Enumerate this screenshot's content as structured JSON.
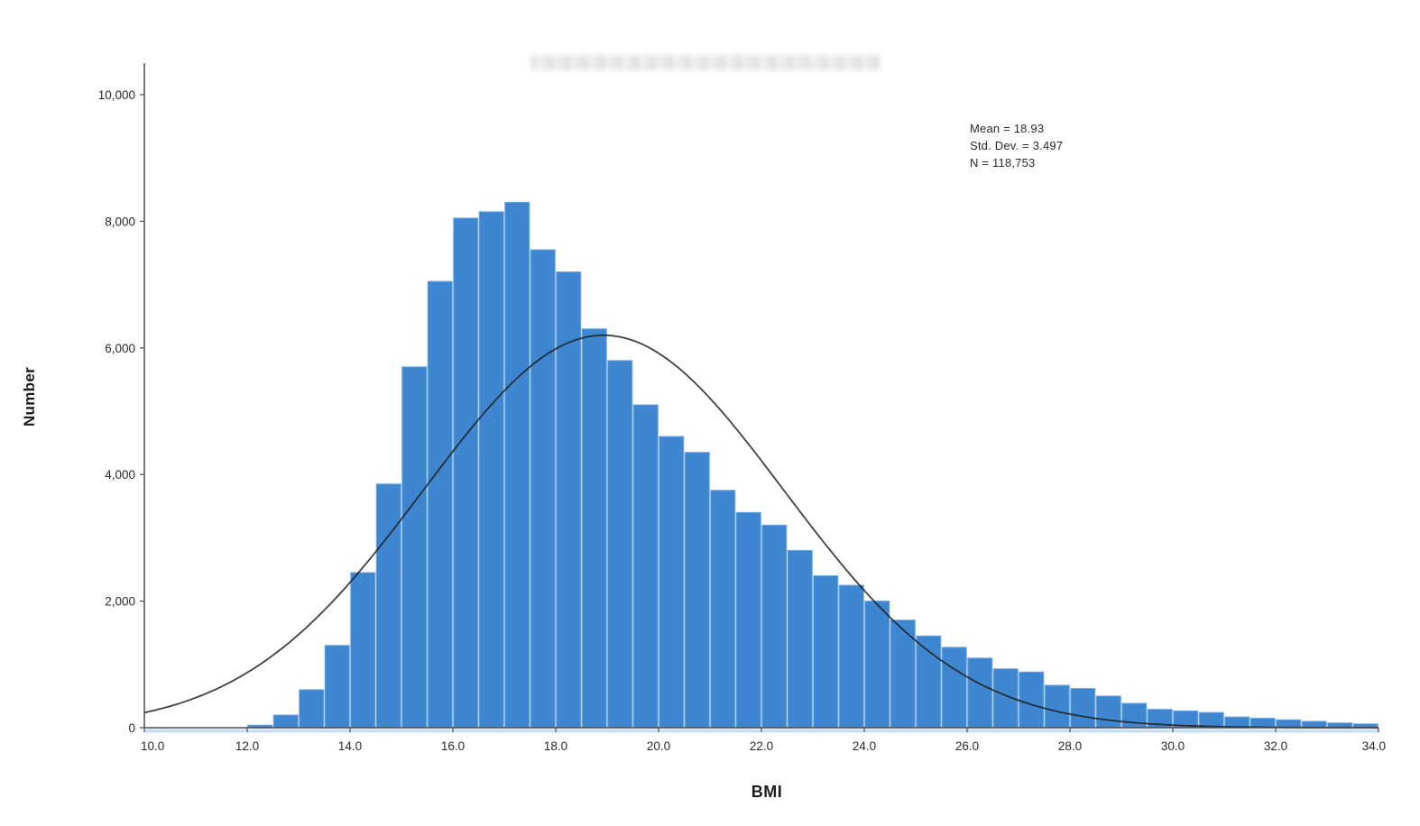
{
  "chart_data": {
    "type": "bar",
    "subtype": "histogram-with-normal-curve",
    "title": "",
    "title_blurred": true,
    "xlabel": "BMI",
    "ylabel": "Number",
    "xlim": [
      10.0,
      34.0
    ],
    "ylim": [
      0,
      10000
    ],
    "grid": false,
    "x_tick_labels": [
      "10.0",
      "12.0",
      "14.0",
      "16.0",
      "18.0",
      "20.0",
      "22.0",
      "24.0",
      "26.0",
      "28.0",
      "30.0",
      "32.0",
      "34.0"
    ],
    "x_tick_values": [
      10,
      12,
      14,
      16,
      18,
      20,
      22,
      24,
      26,
      28,
      30,
      32,
      34
    ],
    "y_tick_labels": [
      "0",
      "2,000",
      "4,000",
      "6,000",
      "8,000",
      "10,000"
    ],
    "y_tick_values": [
      0,
      2000,
      4000,
      6000,
      8000,
      10000
    ],
    "bin_start": 12.0,
    "bin_width": 0.5,
    "values": [
      40,
      200,
      600,
      1300,
      2450,
      3850,
      5700,
      7050,
      8050,
      8150,
      8300,
      7550,
      7200,
      6300,
      5800,
      5100,
      4600,
      4350,
      3750,
      3400,
      3200,
      2800,
      2400,
      2250,
      2000,
      1700,
      1450,
      1270,
      1100,
      930,
      880,
      670,
      620,
      500,
      385,
      290,
      265,
      240,
      170,
      150,
      125,
      100,
      75,
      60
    ],
    "normal_curve": {
      "mean": 18.93,
      "sd": 3.497,
      "peak": 6200
    },
    "stats": [
      "Mean = 18.93",
      "Std. Dev. = 3.497",
      "N = 118,753"
    ],
    "colors": {
      "bar_fill": "#3E86D0",
      "bar_separator": "#6BA6DE",
      "curve": "#1e1e1e",
      "axis": "#4d4d4d",
      "tick_text": "#2a2a2a",
      "baseline_strip": "#c9dff4"
    },
    "legend_position": "none",
    "stats_position": "upper-right"
  }
}
